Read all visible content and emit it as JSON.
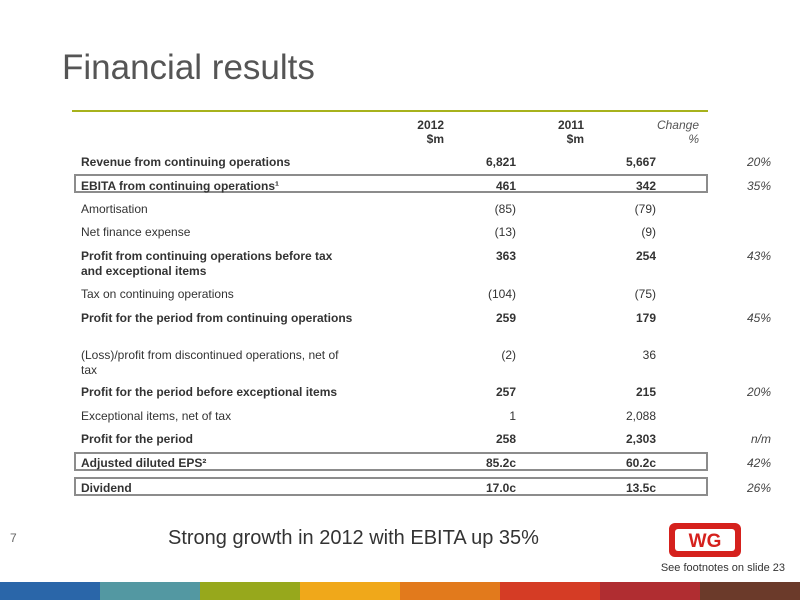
{
  "slide": {
    "title": "Financial results",
    "page_number": "7",
    "tagline": "Strong growth in 2012 with EBITA up 35%",
    "footnote": "See footnotes on slide 23",
    "logo_text": "WG"
  },
  "table": {
    "headers": {
      "y2012_line1": "2012",
      "y2012_line2": "$m",
      "y2011_line1": "2011",
      "y2011_line2": "$m",
      "change_line1": "Change",
      "change_line2": "%"
    },
    "rows": [
      {
        "label": "Revenue from continuing operations",
        "v2012": "6,821",
        "v2011": "5,667",
        "change": "20%"
      },
      {
        "label": "EBITA from continuing operations¹",
        "v2012": "461",
        "v2011": "342",
        "change": "35%"
      },
      {
        "label": "Amortisation",
        "v2012": "(85)",
        "v2011": "(79)",
        "change": ""
      },
      {
        "label": "Net finance expense",
        "v2012": "(13)",
        "v2011": "(9)",
        "change": ""
      },
      {
        "label": "Profit from continuing operations before tax and exceptional items",
        "v2012": "363",
        "v2011": "254",
        "change": "43%"
      },
      {
        "label": "Tax on continuing operations",
        "v2012": "(104)",
        "v2011": "(75)",
        "change": ""
      },
      {
        "label": "Profit for the period from continuing operations",
        "v2012": "259",
        "v2011": "179",
        "change": "45%"
      },
      {
        "label": "(Loss)/profit from discontinued operations, net of tax",
        "v2012": "(2)",
        "v2011": "36",
        "change": ""
      },
      {
        "label": "Profit for the period before exceptional items",
        "v2012": "257",
        "v2011": "215",
        "change": "20%"
      },
      {
        "label": "Exceptional items, net of tax",
        "v2012": "1",
        "v2011": "2,088",
        "change": ""
      },
      {
        "label": "Profit for the period",
        "v2012": "258",
        "v2011": "2,303",
        "change": "n/m"
      },
      {
        "label": "Adjusted diluted EPS²",
        "v2012": "85.2c",
        "v2011": "60.2c",
        "change": "42%"
      },
      {
        "label": "Dividend",
        "v2012": "17.0c",
        "v2011": "13.5c",
        "change": "26%"
      }
    ]
  },
  "colors": {
    "accent_rule": "#a7b21c",
    "logo_red": "#d5211d",
    "band": [
      "#2a66a9",
      "#5398a2",
      "#97a81c",
      "#f0a81a",
      "#e27a1c",
      "#d53c25",
      "#b02d31",
      "#6b3a2a"
    ]
  }
}
